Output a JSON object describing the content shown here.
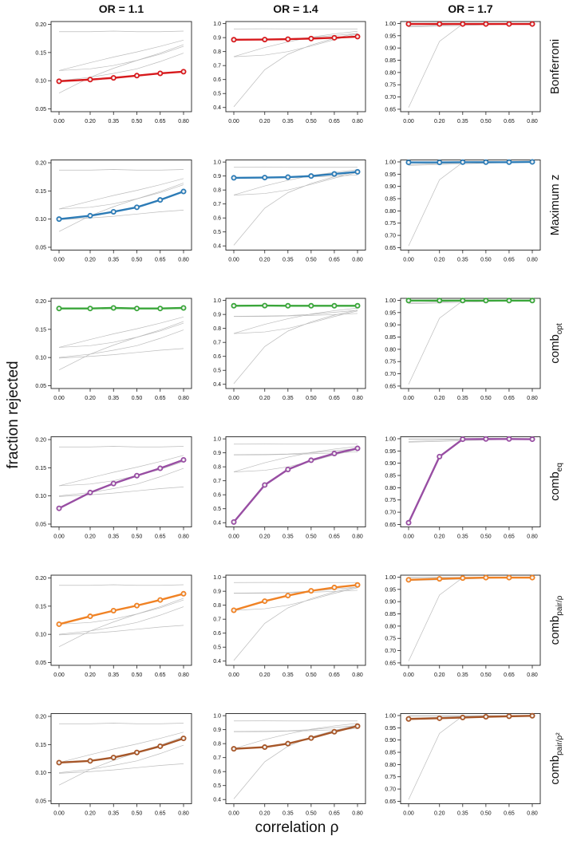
{
  "figure": {
    "y_axis_title": "fraction rejected",
    "x_axis_title": "correlation ρ",
    "column_titles": [
      "OR = 1.1",
      "OR = 1.4",
      "OR = 1.7"
    ],
    "row_labels": [
      {
        "main": "Bonferroni",
        "sub": ""
      },
      {
        "main": "Maximum z",
        "sub": ""
      },
      {
        "main": "comb",
        "sub": "opt"
      },
      {
        "main": "comb",
        "sub": "eq"
      },
      {
        "main": "comb",
        "sub": "pair/ρ"
      },
      {
        "main": "comb",
        "sub": "pair/ρ²"
      }
    ]
  },
  "chart_data": {
    "type": "line",
    "x": [
      0.0,
      0.2,
      0.35,
      0.5,
      0.65,
      0.8
    ],
    "x_tick_labels": [
      "0.00",
      "0.20",
      "0.35",
      "0.50",
      "0.65",
      "0.80"
    ],
    "methods": [
      "Bonferroni",
      "Maximum z",
      "comb_opt",
      "comb_eq",
      "comb_pair/ρ",
      "comb_pair/ρ²"
    ],
    "colors": [
      "#d7191c",
      "#2c7bb6",
      "#3aa63a",
      "#984ea3",
      "#f08224",
      "#a65628"
    ],
    "reference_line_color": "#bcbcbc",
    "panels": [
      {
        "title": "OR = 1.1",
        "ylim": [
          0.045,
          0.205
        ],
        "yticks": [
          0.05,
          0.1,
          0.15,
          0.2
        ],
        "ytick_labels": [
          "0.05",
          "0.10",
          "0.15",
          "0.20"
        ],
        "series": [
          {
            "name": "Bonferroni",
            "values": [
              0.099,
              0.102,
              0.105,
              0.109,
              0.113,
              0.116
            ]
          },
          {
            "name": "Maximum z",
            "values": [
              0.1,
              0.106,
              0.113,
              0.121,
              0.134,
              0.149
            ]
          },
          {
            "name": "comb_opt",
            "values": [
              0.187,
              0.187,
              0.188,
              0.187,
              0.187,
              0.188
            ]
          },
          {
            "name": "comb_eq",
            "values": [
              0.078,
              0.106,
              0.122,
              0.136,
              0.149,
              0.164
            ]
          },
          {
            "name": "comb_pair/ρ",
            "values": [
              0.118,
              0.132,
              0.142,
              0.151,
              0.161,
              0.172
            ]
          },
          {
            "name": "comb_pair/ρ²",
            "values": [
              0.118,
              0.121,
              0.127,
              0.136,
              0.147,
              0.161
            ]
          }
        ]
      },
      {
        "title": "OR = 1.4",
        "ylim": [
          0.37,
          1.015
        ],
        "yticks": [
          0.4,
          0.5,
          0.6,
          0.7,
          0.8,
          0.9,
          1.0
        ],
        "ytick_labels": [
          "0.4",
          "0.5",
          "0.6",
          "0.7",
          "0.8",
          "0.9",
          "1.0"
        ],
        "series": [
          {
            "name": "Bonferroni",
            "values": [
              0.885,
              0.886,
              0.889,
              0.893,
              0.899,
              0.907
            ]
          },
          {
            "name": "Maximum z",
            "values": [
              0.887,
              0.889,
              0.892,
              0.9,
              0.915,
              0.93
            ]
          },
          {
            "name": "comb_opt",
            "values": [
              0.962,
              0.963,
              0.962,
              0.962,
              0.962,
              0.962
            ]
          },
          {
            "name": "comb_eq",
            "values": [
              0.405,
              0.67,
              0.781,
              0.847,
              0.895,
              0.932
            ]
          },
          {
            "name": "comb_pair/ρ",
            "values": [
              0.764,
              0.829,
              0.869,
              0.903,
              0.927,
              0.945
            ]
          },
          {
            "name": "comb_pair/ρ²",
            "values": [
              0.763,
              0.775,
              0.8,
              0.84,
              0.885,
              0.925
            ]
          }
        ]
      },
      {
        "title": "OR = 1.7",
        "ylim": [
          0.64,
          1.008
        ],
        "yticks": [
          0.65,
          0.7,
          0.75,
          0.8,
          0.85,
          0.9,
          0.95,
          1.0
        ],
        "ytick_labels": [
          "0.65",
          "0.70",
          "0.75",
          "0.80",
          "0.85",
          "0.90",
          "0.95",
          "1.00"
        ],
        "series": [
          {
            "name": "Bonferroni",
            "values": [
              0.998,
              0.998,
              0.998,
              0.998,
              0.998,
              0.998
            ]
          },
          {
            "name": "Maximum z",
            "values": [
              0.998,
              0.998,
              0.999,
              0.999,
              0.999,
              1.0
            ]
          },
          {
            "name": "comb_opt",
            "values": [
              0.999,
              0.999,
              0.999,
              0.999,
              0.999,
              0.999
            ]
          },
          {
            "name": "comb_eq",
            "values": [
              0.657,
              0.927,
              0.998,
              0.999,
              0.999,
              0.998
            ]
          },
          {
            "name": "comb_pair/ρ",
            "values": [
              0.989,
              0.993,
              0.996,
              0.998,
              0.998,
              0.998
            ]
          },
          {
            "name": "comb_pair/ρ²",
            "values": [
              0.986,
              0.989,
              0.992,
              0.995,
              0.997,
              0.999
            ]
          }
        ]
      }
    ]
  }
}
